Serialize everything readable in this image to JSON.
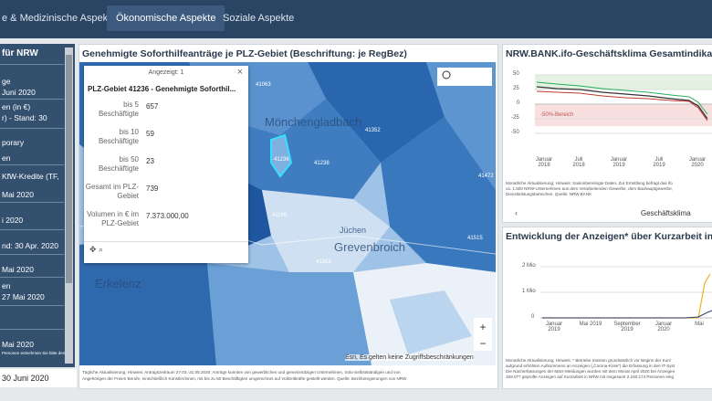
{
  "nav": {
    "tabs": [
      "e & Medizinische Aspekte",
      "Ökonomische Aspekte",
      "Soziale Aspekte"
    ]
  },
  "sidebar": {
    "items": [
      "für NRW",
      "ge",
      "Juni 2020",
      "en (in €)",
      "r) - Stand: 30",
      "porary",
      "en",
      "KfW-Kredite (TF,",
      "Mai 2020",
      "i 2020",
      "nd: 30 Apr. 2020",
      "Mai 2020",
      "en",
      "27 Mai 2020",
      "Mai 2020",
      "Personen entnehmen Sie bitte den"
    ],
    "footer": "30 Juni 2020"
  },
  "map_panel": {
    "title": "Genehmigte Soforthilfeanträge je PLZ-Gebiet (Beschriftung: je RegBez)",
    "popup": {
      "counter": "Angezeigt: 1",
      "heading": "PLZ-Gebiet 41236 - Genehmigte Soforthil...",
      "rows": [
        {
          "label": "bis 5 Beschäftigte",
          "value": "657"
        },
        {
          "label": "bis 10 Beschäftigte",
          "value": "59"
        },
        {
          "label": "bis 50 Beschäftigte",
          "value": "23"
        },
        {
          "label": "Gesamt im PLZ-Gebiet",
          "value": "739"
        },
        {
          "label": "Volumen in € im PLZ-Gebiet",
          "value": "7.373.000,00"
        }
      ]
    },
    "places": [
      "Mönchengladbach",
      "Grevenbroich",
      "Erkelenz",
      "Jüchen"
    ],
    "postcodes": [
      "41063",
      "41352",
      "41236",
      "41238",
      "41199",
      "41363",
      "41472",
      "41515"
    ],
    "attribution": "Esri, Es gelten keine Zugriffsbeschränkungen",
    "note": [
      "Tägliche Aktualisierung; Hinweis: Antragszeitraum 27.03.-31.05.2020. Anträge konnten von gewerblichen und gemeinnützigen Unternehmen, Solo-Selbstständigen und von",
      "Angehörigen der Freien Berufe, einschließlich Künstler/innen, mit bis zu 50 Beschäftigten umgerechnet auf Vollzeitkräfte gestellt werden. Quelle: Bezirksregierungen von NRW"
    ]
  },
  "climate_panel": {
    "title": "NRW.BANK.ifo-Geschäftsklima Gesamtindikator fü",
    "yticks": [
      "50",
      "25",
      "0",
      "-25",
      "-50"
    ],
    "band_label": "-50%-Bereich",
    "xticks": [
      "Januar 2018",
      "Juli 2018",
      "Januar 2019",
      "Juli 2019",
      "Januar 2020"
    ],
    "note": [
      "Monatliche Aktualisierung; Hinweis: Saisonbereinigte Daten. Zur Ermittlung befragt das ifo",
      "ca. 1.500 NRW-Unternehmen aus dem Verarbeitenden Gewerbe, dem Bauhauptgewerbe,",
      "Dienstleistungsbereichen. Quelle: NRW.BANK"
    ],
    "tab": "Geschäftsklima"
  },
  "kurzarbeit_panel": {
    "title": "Entwicklung der Anzeigen* über Kurzarbeit in NRW",
    "yticks": [
      "2 Mio",
      "1 Mio",
      "0"
    ],
    "xticks": [
      "Januar 2019",
      "Mai 2019",
      "September 2019",
      "Januar 2020",
      "Mai"
    ],
    "note": [
      "Monatliche Aktualisierung; Hinweis: * Betriebe müssen grundsätzlich vor Beginn der Kurz",
      "aufgrund erhöhten Aufkommens an Anzeigen („Corona-Krise“) die Erfassung in den IT-Syst",
      "Die Nacherfassungen der März-Meldungen wurden mit dem Monat April 2020 bei Anzeigen",
      "159.077 geprüfte Anzeigen auf Kurzarbeit in NRW mit insgesamt 2.240.174 Personen eing"
    ]
  }
}
